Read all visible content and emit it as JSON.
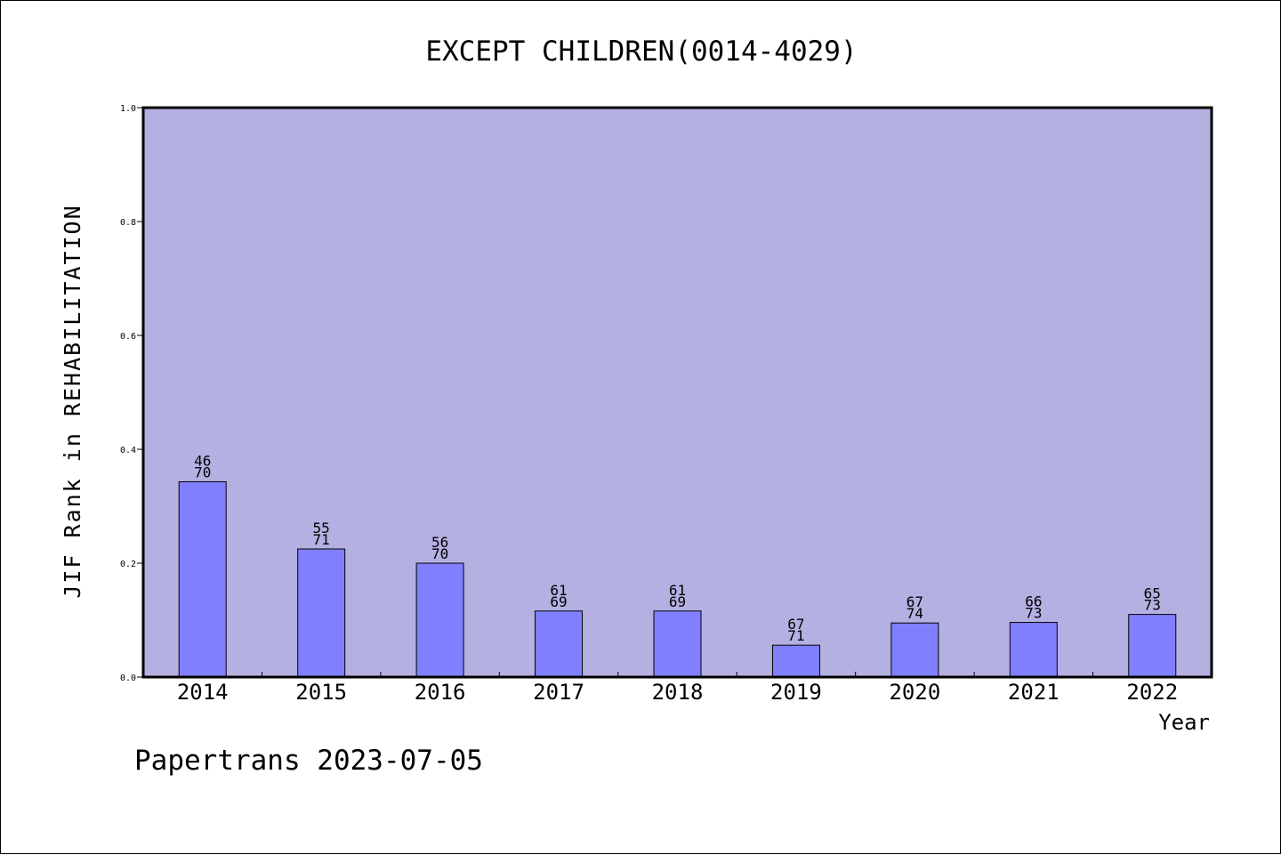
{
  "chart_data": {
    "type": "bar",
    "title": "EXCEPT CHILDREN(0014-4029)",
    "xlabel": "Year",
    "ylabel": "JIF Rank in REHABILITATION",
    "ylim": [
      0,
      1.0
    ],
    "yticks": [
      "0.0",
      "0.2",
      "0.4",
      "0.6",
      "0.8",
      "1.0"
    ],
    "grid": false,
    "categories": [
      "2014",
      "2015",
      "2016",
      "2017",
      "2018",
      "2019",
      "2020",
      "2021",
      "2022"
    ],
    "values": [
      0.343,
      0.225,
      0.2,
      0.116,
      0.116,
      0.056,
      0.095,
      0.096,
      0.11
    ],
    "labels": [
      {
        "rank": "46",
        "total": "70"
      },
      {
        "rank": "55",
        "total": "71"
      },
      {
        "rank": "56",
        "total": "70"
      },
      {
        "rank": "61",
        "total": "69"
      },
      {
        "rank": "61",
        "total": "69"
      },
      {
        "rank": "67",
        "total": "71"
      },
      {
        "rank": "67",
        "total": "74"
      },
      {
        "rank": "66",
        "total": "73"
      },
      {
        "rank": "65",
        "total": "73"
      }
    ],
    "colors": {
      "plot_background": "#b5b0e2",
      "bar_fill": "#8080ff",
      "bar_stroke": "#000000"
    }
  },
  "footer": "Papertrans 2023-07-05"
}
